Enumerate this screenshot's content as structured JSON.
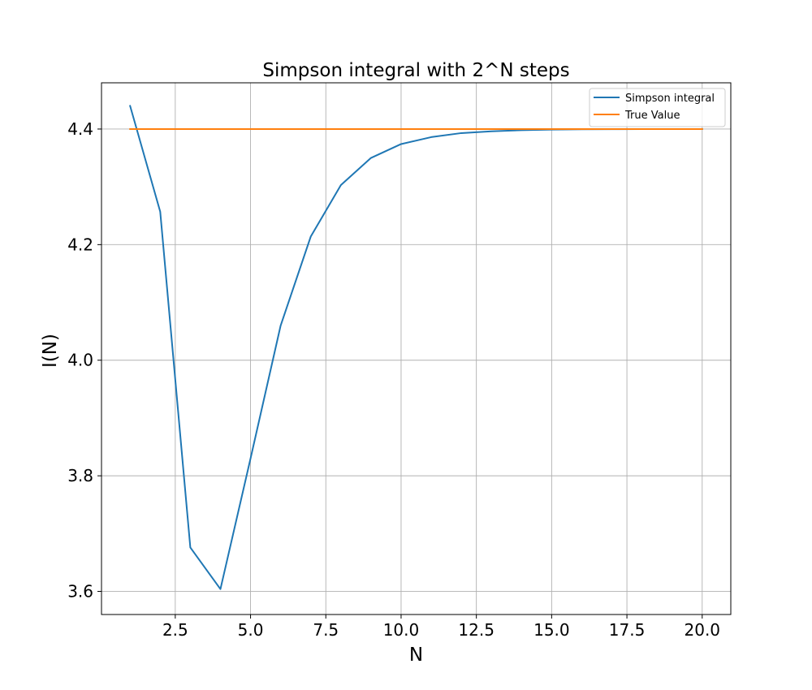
{
  "chart_data": {
    "type": "line",
    "title": "Simpson integral with 2^N steps",
    "xlabel": "N",
    "ylabel": "I(N)",
    "xlim": [
      0.05,
      20.95
    ],
    "ylim": [
      3.56,
      4.48
    ],
    "x_ticks": [
      2.5,
      5.0,
      7.5,
      10.0,
      12.5,
      15.0,
      17.5,
      20.0
    ],
    "x_tick_labels": [
      "2.5",
      "5.0",
      "7.5",
      "10.0",
      "12.5",
      "15.0",
      "17.5",
      "20.0"
    ],
    "y_ticks": [
      3.6,
      3.8,
      4.0,
      4.2,
      4.4
    ],
    "y_tick_labels": [
      "3.6",
      "3.8",
      "4.0",
      "4.2",
      "4.4"
    ],
    "grid": true,
    "legend_position": "top-right",
    "series": [
      {
        "name": "Simpson integral",
        "color": "#1f77b4",
        "x": [
          1,
          2,
          3,
          4,
          5,
          6,
          7,
          8,
          9,
          10,
          11,
          12,
          13,
          14,
          15,
          16,
          17,
          18,
          19,
          20
        ],
        "values": [
          4.44,
          4.257,
          3.676,
          3.604,
          3.83,
          4.06,
          4.214,
          4.303,
          4.35,
          4.374,
          4.386,
          4.393,
          4.396,
          4.398,
          4.399,
          4.3995,
          4.3998,
          4.3999,
          4.4,
          4.4
        ]
      },
      {
        "name": "True Value",
        "color": "#ff7f0e",
        "x": [
          1,
          20
        ],
        "values": [
          4.4,
          4.4
        ]
      }
    ]
  }
}
